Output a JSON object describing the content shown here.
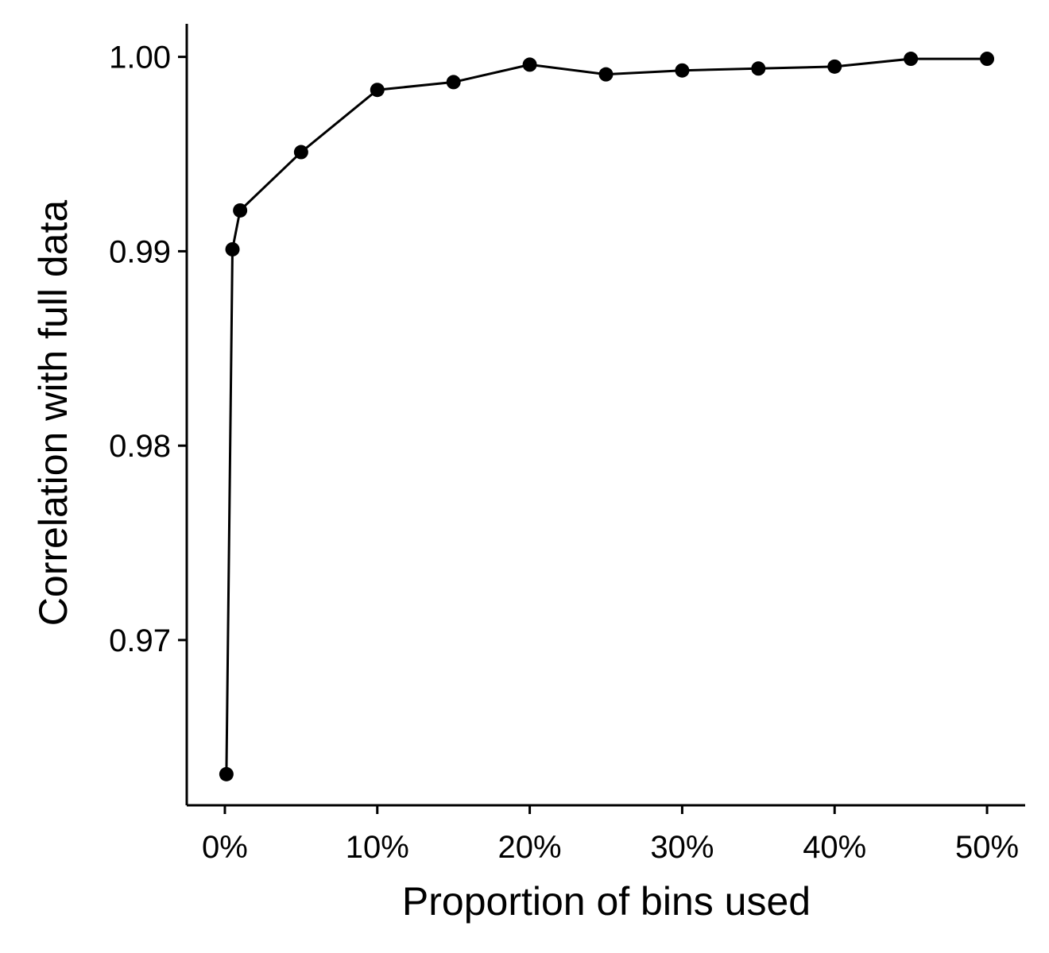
{
  "chart_data": {
    "type": "line",
    "title": "",
    "xlabel": "Proportion of bins used",
    "ylabel": "Correlation with full data",
    "x_ticks": [
      {
        "value": 0,
        "label": "0%"
      },
      {
        "value": 10,
        "label": "10%"
      },
      {
        "value": 20,
        "label": "20%"
      },
      {
        "value": 30,
        "label": "30%"
      },
      {
        "value": 40,
        "label": "40%"
      },
      {
        "value": 50,
        "label": "50%"
      }
    ],
    "y_ticks": [
      {
        "value": 0.97,
        "label": "0.97"
      },
      {
        "value": 0.98,
        "label": "0.98"
      },
      {
        "value": 0.99,
        "label": "0.99"
      },
      {
        "value": 1.0,
        "label": "1.00"
      }
    ],
    "xlim": [
      -2.5,
      52.5
    ],
    "ylim": [
      0.9615,
      1.0017
    ],
    "grid": false,
    "legend": "none",
    "line_color": "#000000",
    "x": [
      0.1,
      0.5,
      1,
      5,
      10,
      15,
      20,
      25,
      30,
      35,
      40,
      45,
      50
    ],
    "y": [
      0.9631,
      0.9901,
      0.9921,
      0.9951,
      0.9983,
      0.9987,
      0.9996,
      0.9991,
      0.9993,
      0.9994,
      0.9995,
      0.9999,
      0.9999
    ]
  }
}
